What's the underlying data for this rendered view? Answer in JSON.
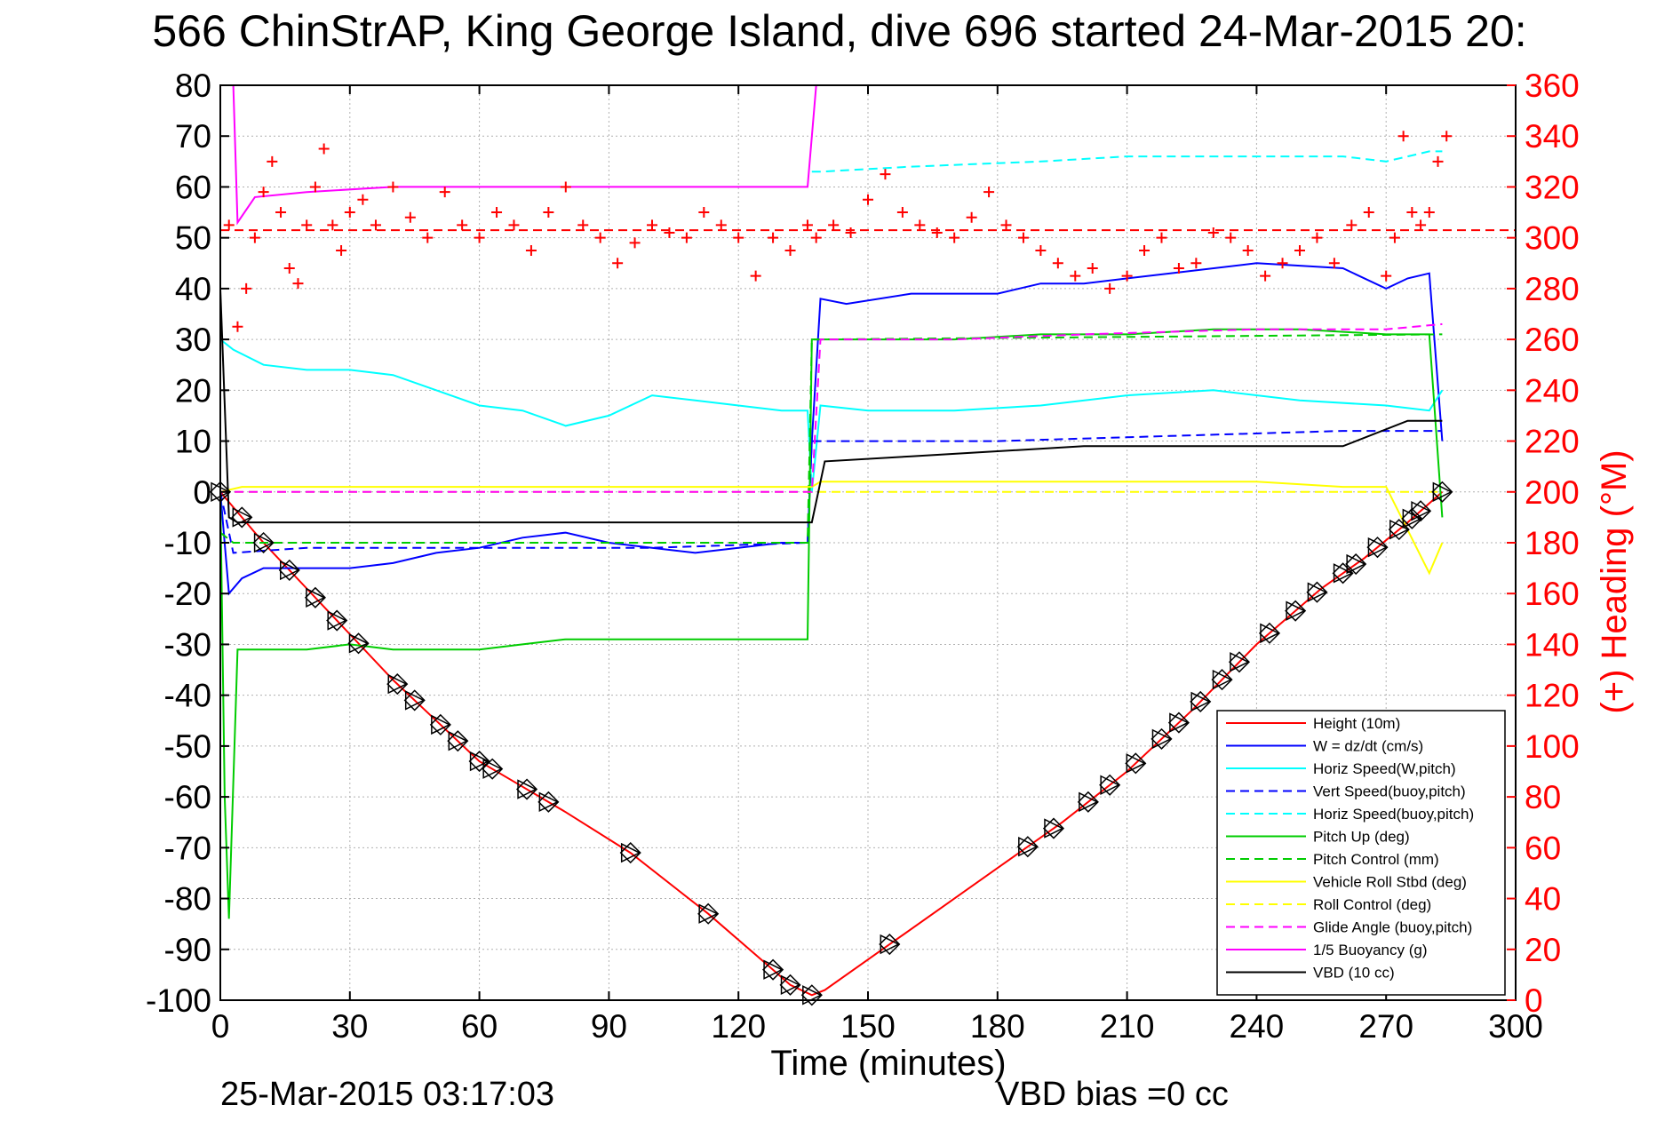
{
  "chart_data": {
    "type": "line",
    "title": "566 ChinStrAP, King George Island, dive 696 started 24-Mar-2015 20:",
    "xlabel": "Time (minutes)",
    "ylabel_right": "(+) Heading (°M)",
    "xlim": [
      0,
      300
    ],
    "ylim": [
      -100,
      80
    ],
    "ylim_right": [
      0,
      360
    ],
    "xticks": [
      "0",
      "30",
      "60",
      "90",
      "120",
      "150",
      "180",
      "210",
      "240",
      "270",
      "300"
    ],
    "yticks": [
      "80",
      "70",
      "60",
      "50",
      "40",
      "30",
      "20",
      "10",
      "0",
      "-10",
      "-20",
      "-30",
      "-40",
      "-50",
      "-60",
      "-70",
      "-80",
      "-90",
      "-100"
    ],
    "yticks_right": [
      "360",
      "340",
      "320",
      "300",
      "280",
      "260",
      "240",
      "220",
      "200",
      "180",
      "160",
      "140",
      "120",
      "100",
      "80",
      "60",
      "40",
      "20",
      "0"
    ],
    "grid": true,
    "legend_position": "bottom-right",
    "footer_left": "25-Mar-2015 03:17:03",
    "footer_right": "VBD bias =0 cc",
    "series": [
      {
        "name": "Height (10m)",
        "color": "#ff0000",
        "style": "solid",
        "x": [
          0,
          10,
          20,
          30,
          40,
          50,
          60,
          70,
          80,
          95,
          113,
          128,
          132,
          137,
          140,
          155,
          170,
          180,
          195,
          210,
          225,
          240,
          255,
          265,
          275,
          283
        ],
        "y": [
          0,
          -10,
          -19,
          -28,
          -37,
          -45,
          -53,
          -58,
          -63,
          -71,
          -83,
          -94,
          -97,
          -99,
          -98,
          -89,
          -80,
          -74,
          -65,
          -55,
          -43,
          -30,
          -19,
          -13,
          -6,
          0
        ]
      },
      {
        "name": "W = dz/dt (cm/s)",
        "color": "#0000ff",
        "style": "solid",
        "x": [
          0,
          2,
          5,
          10,
          20,
          30,
          40,
          50,
          60,
          70,
          80,
          90,
          100,
          110,
          120,
          130,
          136,
          137,
          139,
          145,
          160,
          180,
          190,
          200,
          220,
          240,
          260,
          270,
          275,
          280,
          283
        ],
        "y": [
          0,
          -20,
          -17,
          -15,
          -15,
          -15,
          -14,
          -12,
          -11,
          -9,
          -8,
          -10,
          -11,
          -12,
          -11,
          -10,
          -10,
          10,
          38,
          37,
          39,
          39,
          41,
          41,
          43,
          45,
          44,
          40,
          42,
          43,
          10
        ]
      },
      {
        "name": "Horiz Speed(W,pitch)",
        "color": "#00ffff",
        "style": "solid",
        "x": [
          0,
          3,
          10,
          20,
          30,
          40,
          50,
          60,
          70,
          80,
          90,
          100,
          110,
          120,
          130,
          136,
          137,
          139,
          150,
          170,
          190,
          210,
          230,
          250,
          270,
          280,
          283
        ],
        "y": [
          30,
          28,
          25,
          24,
          24,
          23,
          20,
          17,
          16,
          13,
          15,
          19,
          18,
          17,
          16,
          16,
          0,
          17,
          16,
          16,
          17,
          19,
          20,
          18,
          17,
          16,
          20
        ]
      },
      {
        "name": "Vert Speed(buoy,pitch)",
        "color": "#0000ff",
        "style": "dashed",
        "x": [
          0,
          3,
          20,
          60,
          100,
          136,
          137,
          139,
          180,
          220,
          260,
          280,
          283
        ],
        "y": [
          0,
          -12,
          -11,
          -11,
          -11,
          -10,
          10,
          10,
          10,
          11,
          12,
          12,
          12
        ]
      },
      {
        "name": "Horiz Speed(buoy,pitch)",
        "color": "#00ffff",
        "style": "dashed",
        "x": [
          137,
          139,
          160,
          190,
          210,
          240,
          260,
          270,
          280,
          283
        ],
        "y": [
          63,
          63,
          64,
          65,
          66,
          66,
          66,
          65,
          67,
          67
        ]
      },
      {
        "name": "Pitch Up (deg)",
        "color": "#00cc00",
        "style": "solid",
        "x": [
          0,
          1,
          2,
          4,
          10,
          20,
          30,
          40,
          50,
          60,
          70,
          80,
          90,
          100,
          110,
          120,
          130,
          136,
          137,
          139,
          150,
          170,
          190,
          210,
          230,
          250,
          270,
          280,
          283
        ],
        "y": [
          0,
          -60,
          -84,
          -31,
          -31,
          -31,
          -30,
          -31,
          -31,
          -31,
          -30,
          -29,
          -29,
          -29,
          -29,
          -29,
          -29,
          -29,
          30,
          30,
          30,
          30,
          31,
          31,
          32,
          32,
          31,
          31,
          -5
        ]
      },
      {
        "name": "Pitch Control (mm)",
        "color": "#00cc00",
        "style": "dashed",
        "x": [
          0,
          3,
          136,
          137,
          139,
          283
        ],
        "y": [
          -8,
          -10,
          -10,
          30,
          30,
          31
        ]
      },
      {
        "name": "Vehicle Roll Stbd (deg)",
        "color": "#ffff00",
        "style": "solid",
        "x": [
          0,
          5,
          30,
          60,
          90,
          120,
          136,
          137,
          139,
          180,
          210,
          240,
          260,
          270,
          280,
          283
        ],
        "y": [
          0,
          1,
          1,
          1,
          1,
          1,
          1,
          1,
          2,
          2,
          2,
          2,
          1,
          1,
          -16,
          -10
        ]
      },
      {
        "name": "Roll Control (deg)",
        "color": "#ffff00",
        "style": "dashed",
        "x": [
          0,
          136,
          137,
          283
        ],
        "y": [
          0,
          0,
          0,
          0
        ]
      },
      {
        "name": "Glide Angle (buoy,pitch)",
        "color": "#ff00ff",
        "style": "dashed",
        "x": [
          0,
          136,
          137,
          139,
          170,
          200,
          240,
          270,
          283
        ],
        "y": [
          0,
          0,
          0,
          30,
          30,
          31,
          32,
          32,
          33
        ]
      },
      {
        "name": "1/5 Buoyancy (g)",
        "color": "#ff00ff",
        "style": "solid",
        "x": [
          3,
          4,
          8,
          20,
          40,
          60,
          80,
          100,
          120,
          136,
          138
        ],
        "y": [
          80,
          53,
          58,
          59,
          60,
          60,
          60,
          60,
          60,
          60,
          80
        ]
      },
      {
        "name": "VBD (10 cc)",
        "color": "#000000",
        "style": "solid",
        "x": [
          0,
          2,
          4,
          136,
          137,
          140,
          160,
          180,
          200,
          230,
          260,
          275,
          283
        ],
        "y": [
          40,
          -5,
          -6,
          -6,
          -6,
          6,
          7,
          8,
          9,
          9,
          9,
          14,
          14
        ]
      }
    ],
    "heading_series": {
      "name": "Heading",
      "axis": "right",
      "color": "#ff0000",
      "marker": "+",
      "x": [
        2,
        4,
        6,
        8,
        10,
        12,
        14,
        16,
        18,
        20,
        22,
        24,
        26,
        28,
        30,
        33,
        36,
        40,
        44,
        48,
        52,
        56,
        60,
        64,
        68,
        72,
        76,
        80,
        84,
        88,
        92,
        96,
        100,
        104,
        108,
        112,
        116,
        120,
        124,
        128,
        132,
        136,
        138,
        142,
        146,
        150,
        154,
        158,
        162,
        166,
        170,
        174,
        178,
        182,
        186,
        190,
        194,
        198,
        202,
        206,
        210,
        214,
        218,
        222,
        226,
        230,
        234,
        238,
        242,
        246,
        250,
        254,
        258,
        262,
        266,
        270,
        272,
        274,
        276,
        278,
        280,
        282,
        284
      ],
      "y": [
        305,
        265,
        280,
        300,
        318,
        330,
        310,
        288,
        282,
        305,
        320,
        335,
        305,
        295,
        310,
        315,
        305,
        320,
        308,
        300,
        318,
        305,
        300,
        310,
        305,
        295,
        310,
        320,
        305,
        300,
        290,
        298,
        305,
        302,
        300,
        310,
        305,
        300,
        285,
        300,
        295,
        305,
        300,
        305,
        302,
        315,
        325,
        310,
        305,
        302,
        300,
        308,
        318,
        305,
        300,
        295,
        290,
        285,
        288,
        280,
        285,
        295,
        300,
        288,
        290,
        302,
        300,
        295,
        285,
        290,
        295,
        300,
        290,
        305,
        310,
        285,
        300,
        340,
        310,
        305,
        310,
        330,
        340
      ]
    },
    "reference_lines": [
      {
        "axis": "right",
        "y": 303,
        "color": "#ff0000",
        "style": "dashed"
      }
    ],
    "height_markers_x": [
      0,
      5,
      10,
      16,
      22,
      27,
      32,
      41,
      45,
      51,
      55,
      60,
      63,
      71,
      76,
      95,
      113,
      128,
      132,
      137,
      155,
      187,
      193,
      201,
      206,
      212,
      218,
      222,
      227,
      232,
      236,
      243,
      249,
      254,
      260,
      263,
      268,
      273,
      276,
      278,
      283
    ]
  }
}
